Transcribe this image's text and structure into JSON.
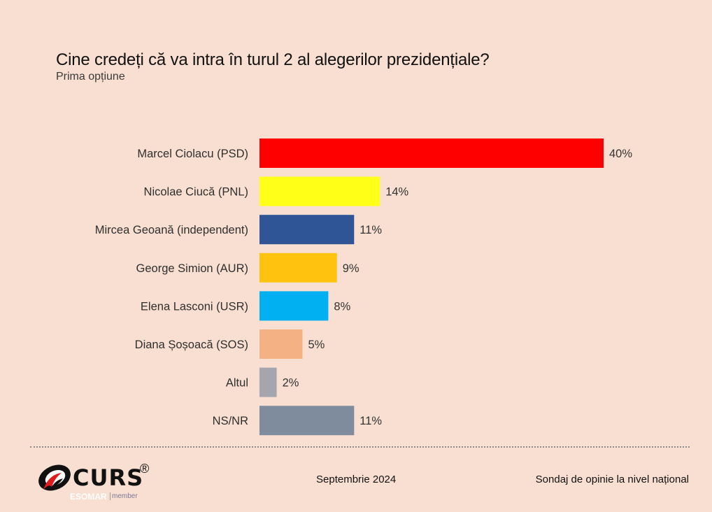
{
  "header": {
    "title": "Cine credeți că va intra în turul 2 al alegerilor prezidențiale?",
    "subtitle": "Prima opțiune"
  },
  "chart_data": {
    "type": "bar",
    "orientation": "horizontal",
    "title": "Cine credeți că va intra în turul 2 al alegerilor prezidențiale?",
    "subtitle": "Prima opțiune",
    "xlabel": "",
    "ylabel": "",
    "categories": [
      "Marcel Ciolacu (PSD)",
      "Nicolae Ciucă (PNL)",
      "Mircea Geoană (independent)",
      "George Simion (AUR)",
      "Elena Lasconi (USR)",
      "Diana Șoșoacă (SOS)",
      "Altul",
      "NS/NR"
    ],
    "values": [
      40,
      14,
      11,
      9,
      8,
      5,
      2,
      11
    ],
    "value_labels": [
      "40%",
      "14%",
      "11%",
      "9%",
      "8%",
      "5%",
      "2%",
      "11%"
    ],
    "colors": [
      "#ff0000",
      "#ffff17",
      "#2f5597",
      "#ffc20e",
      "#00b0f0",
      "#f4b183",
      "#a5a5ad",
      "#7f8c9d"
    ],
    "xlim": [
      0,
      40
    ],
    "grid": false,
    "legend": "none"
  },
  "footer": {
    "logo_text": "CURS",
    "logo_registered": "®",
    "esomar": "ESOMAR",
    "member": "member",
    "date": "Septembrie 2024",
    "note": "Sondaj de opinie la nivel național"
  }
}
